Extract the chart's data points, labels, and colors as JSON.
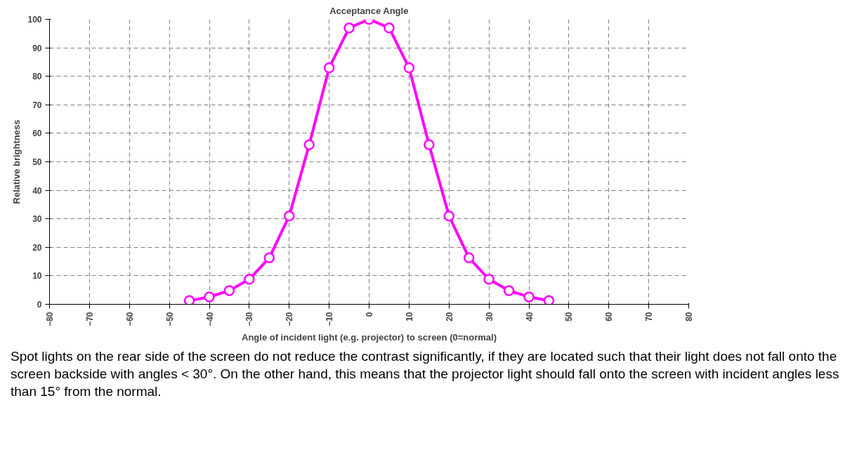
{
  "chart_data": {
    "type": "line",
    "title": "Acceptance Angle",
    "xlabel": "Angle of incident light (e.g. projector) to screen (0=normal)",
    "ylabel": "Relative brightness",
    "x": [
      -45,
      -40,
      -35,
      -30,
      -25,
      -20,
      -15,
      -10,
      -5,
      0,
      5,
      10,
      15,
      20,
      25,
      30,
      35,
      40,
      45
    ],
    "series": [
      {
        "color": "#ff00ff",
        "values": [
          1.3,
          2.6,
          4.8,
          8.8,
          16.3,
          31,
          56,
          83,
          97,
          100,
          97,
          83,
          56,
          31,
          16.3,
          8.8,
          4.8,
          2.6,
          1.3
        ]
      }
    ],
    "xlim": [
      -80,
      80
    ],
    "xticks": [
      -80,
      -70,
      -60,
      -50,
      -40,
      -30,
      -20,
      -10,
      0,
      10,
      20,
      30,
      40,
      50,
      60,
      70,
      80
    ],
    "ylim": [
      0,
      100
    ],
    "yticks": [
      0,
      10,
      20,
      30,
      40,
      50,
      60,
      70,
      80,
      90,
      100
    ],
    "grid": true,
    "marker": "circle",
    "line_style": "solid",
    "annotations": [
      "Spot lights on the rear side of the screen do not reduce the contrast significantly, if they are located such that their light does not fall onto the screen backside with angles < 30°.  On the other hand, this means that the projector light should fall onto the screen with incident angles less than 15° from the normal."
    ]
  }
}
